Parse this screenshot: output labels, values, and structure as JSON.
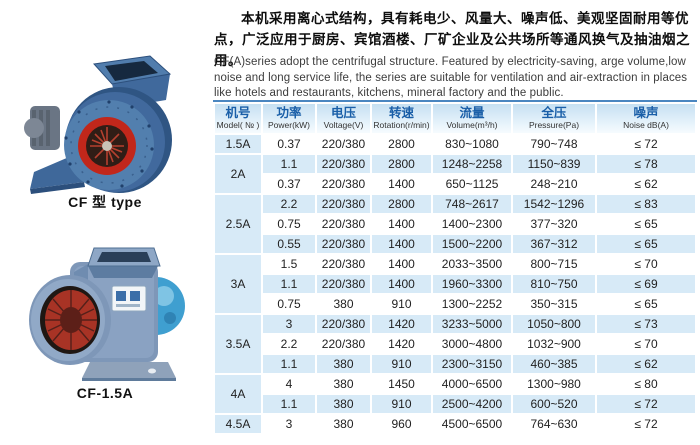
{
  "intro": {
    "cn": "本机采用离心式结构，具有耗电少、风量大、噪声低、美观坚固耐用等优点，广泛应用于厨房、宾馆酒楼、厂矿企业及公共场所等通风换气及抽油烟之用。",
    "en": "CF(A)series adopt the centrifugal structure. Featured by electricity-saving, arge volume,low noise and long service life, the series are suitable for ventilation and air-extraction in places like hotels and restaurants, kitchens, mineral factory and the public."
  },
  "products": [
    {
      "caption": "CF 型 type"
    },
    {
      "caption": "CF-1.5A"
    }
  ],
  "spec_table": {
    "headers": [
      {
        "cn": "机号",
        "en": "Model( № )"
      },
      {
        "cn": "功率",
        "en": "Power(kW)"
      },
      {
        "cn": "电压",
        "en": "Voltage(V)"
      },
      {
        "cn": "转速",
        "en": "Rotation(r/min)"
      },
      {
        "cn": "流量",
        "en": "Volume(m³/h)"
      },
      {
        "cn": "全压",
        "en": "Pressure(Pa)"
      },
      {
        "cn": "噪声",
        "en": "Noise dB(A)"
      }
    ],
    "groups": [
      {
        "model": "1.5A",
        "rows": [
          [
            "0.37",
            "220/380",
            "2800",
            "830~1080",
            "790~748",
            "≤ 72"
          ]
        ]
      },
      {
        "model": "2A",
        "rows": [
          [
            "1.1",
            "220/380",
            "2800",
            "1248~2258",
            "1150~839",
            "≤ 78"
          ],
          [
            "0.37",
            "220/380",
            "1400",
            "650~1125",
            "248~210",
            "≤ 62"
          ]
        ]
      },
      {
        "model": "2.5A",
        "rows": [
          [
            "2.2",
            "220/380",
            "2800",
            "748~2617",
            "1542~1296",
            "≤ 83"
          ],
          [
            "0.75",
            "220/380",
            "1400",
            "1400~2300",
            "377~320",
            "≤ 65"
          ],
          [
            "0.55",
            "220/380",
            "1400",
            "1500~2200",
            "367~312",
            "≤ 65"
          ]
        ]
      },
      {
        "model": "3A",
        "rows": [
          [
            "1.5",
            "220/380",
            "1400",
            "2033~3500",
            "800~715",
            "≤ 70"
          ],
          [
            "1.1",
            "220/380",
            "1400",
            "1960~3300",
            "810~750",
            "≤ 69"
          ],
          [
            "0.75",
            "380",
            "910",
            "1300~2252",
            "350~315",
            "≤ 65"
          ]
        ]
      },
      {
        "model": "3.5A",
        "rows": [
          [
            "3",
            "220/380",
            "1420",
            "3233~5000",
            "1050~800",
            "≤ 73"
          ],
          [
            "2.2",
            "220/380",
            "1420",
            "3000~4800",
            "1032~900",
            "≤ 70"
          ],
          [
            "1.1",
            "380",
            "910",
            "2300~3150",
            "460~385",
            "≤ 62"
          ]
        ]
      },
      {
        "model": "4A",
        "rows": [
          [
            "4",
            "380",
            "1450",
            "4000~6500",
            "1300~980",
            "≤ 80"
          ],
          [
            "1.1",
            "380",
            "910",
            "2500~4200",
            "600~520",
            "≤ 72"
          ]
        ]
      },
      {
        "model": "4.5A",
        "rows": [
          [
            "3",
            "380",
            "960",
            "4500~6500",
            "764~630",
            "≤ 72"
          ]
        ]
      }
    ]
  },
  "colors": {
    "table_top_border": "#4a86c0",
    "header_text_cn": "#1a5fa8",
    "row_highlight": "#d7eaf7",
    "fan_body_blue": "#40699c",
    "fan_impeller_red": "#c1271b",
    "fan2_motor_blue": "#3f9fd0"
  }
}
